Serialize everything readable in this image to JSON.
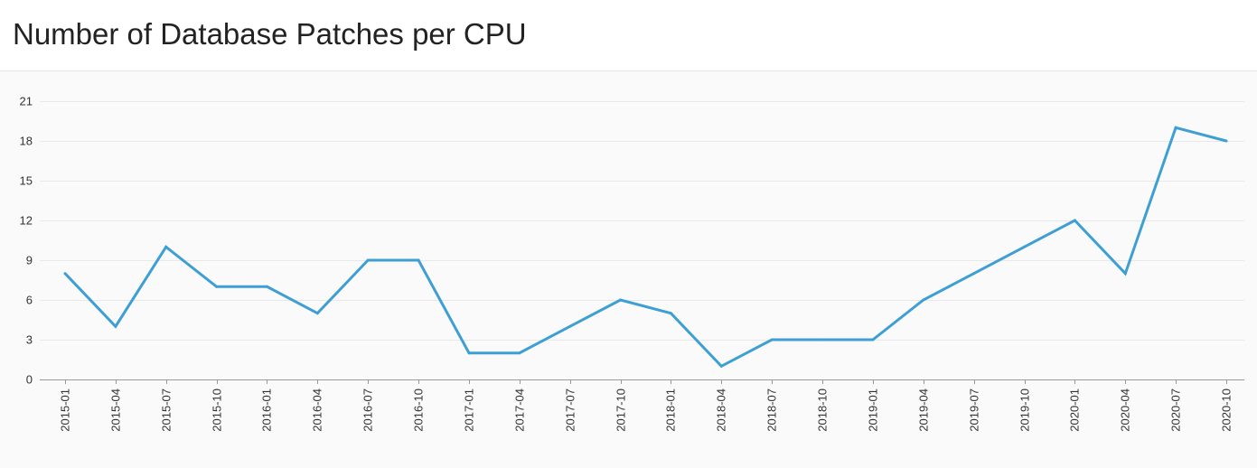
{
  "page": {
    "title": "Number of Database Patches per CPU"
  },
  "chart_data": {
    "type": "line",
    "title": "Number of Database Patches per CPU",
    "xlabel": "",
    "ylabel": "",
    "categories": [
      "2015-01",
      "2015-04",
      "2015-07",
      "2015-10",
      "2016-01",
      "2016-04",
      "2016-07",
      "2016-10",
      "2017-01",
      "2017-04",
      "2017-07",
      "2017-10",
      "2018-01",
      "2018-04",
      "2018-07",
      "2018-10",
      "2019-01",
      "2019-04",
      "2019-07",
      "2019-10",
      "2020-01",
      "2020-04",
      "2020-07",
      "2020-10"
    ],
    "series": [
      {
        "values": [
          8,
          4,
          10,
          7,
          7,
          5,
          9,
          9,
          2,
          2,
          4,
          6,
          5,
          1,
          3,
          3,
          3,
          6,
          8,
          10,
          12,
          8,
          19,
          18
        ],
        "color": "#3d9fd3"
      }
    ],
    "ylim": [
      0,
      21
    ],
    "yticks": [
      0,
      3,
      6,
      9,
      12,
      15,
      18,
      21
    ],
    "grid": true,
    "legend": "none"
  }
}
